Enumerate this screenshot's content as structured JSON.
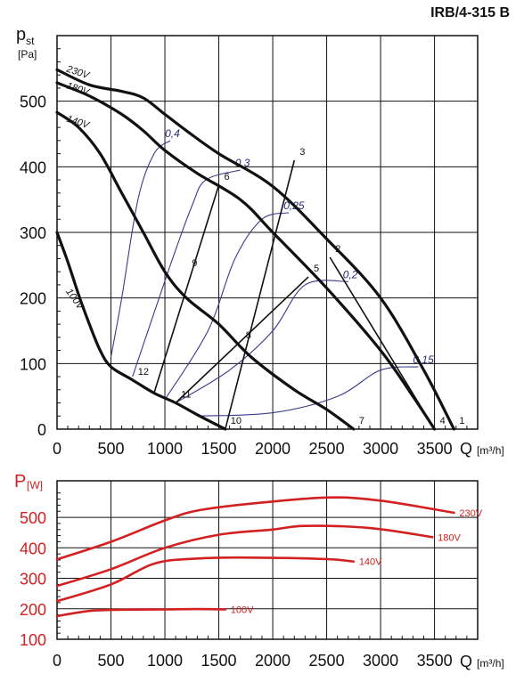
{
  "title": "IRB/4-315 B",
  "chart_data": [
    {
      "type": "line",
      "ylabel": "p",
      "ylabel_sub": "st",
      "yunit": "[Pa]",
      "xlabel": "Q",
      "xunit": "[m³/h]",
      "xlim": [
        0,
        3900
      ],
      "ylim": [
        0,
        600
      ],
      "x_ticks": [
        "0",
        "500",
        "1000",
        "1500",
        "2000",
        "2500",
        "3000",
        "3500"
      ],
      "y_ticks": [
        "0",
        "100",
        "200",
        "300",
        "400",
        "500"
      ],
      "grid": true,
      "series": [
        {
          "name": "230V",
          "points": [
            [
              0,
              548
            ],
            [
              300,
              525
            ],
            [
              600,
              515
            ],
            [
              800,
              505
            ],
            [
              1000,
              480
            ],
            [
              1200,
              455
            ],
            [
              1500,
              420
            ],
            [
              2000,
              370
            ],
            [
              2500,
              290
            ],
            [
              3000,
              200
            ],
            [
              3400,
              90
            ],
            [
              3680,
              0
            ]
          ]
        },
        {
          "name": "180V",
          "points": [
            [
              0,
              528
            ],
            [
              300,
              508
            ],
            [
              600,
              480
            ],
            [
              800,
              455
            ],
            [
              1000,
              425
            ],
            [
              1300,
              390
            ],
            [
              1700,
              350
            ],
            [
              2000,
              300
            ],
            [
              2500,
              215
            ],
            [
              3000,
              120
            ],
            [
              3300,
              50
            ],
            [
              3500,
              0
            ]
          ]
        },
        {
          "name": "140V",
          "points": [
            [
              0,
              483
            ],
            [
              200,
              460
            ],
            [
              400,
              420
            ],
            [
              600,
              360
            ],
            [
              800,
              300
            ],
            [
              1000,
              240
            ],
            [
              1200,
              200
            ],
            [
              1500,
              160
            ],
            [
              1800,
              110
            ],
            [
              2200,
              60
            ],
            [
              2500,
              30
            ],
            [
              2750,
              0
            ]
          ]
        },
        {
          "name": "100V",
          "points": [
            [
              0,
              300
            ],
            [
              100,
              255
            ],
            [
              200,
              205
            ],
            [
              300,
              160
            ],
            [
              400,
              120
            ],
            [
              500,
              95
            ],
            [
              700,
              75
            ],
            [
              900,
              55
            ],
            [
              1100,
              40
            ],
            [
              1300,
              22
            ],
            [
              1500,
              5
            ],
            [
              1560,
              0
            ]
          ]
        }
      ],
      "system_lines": [
        {
          "label": "1",
          "points": [
            [
              3680,
              0
            ]
          ]
        },
        {
          "label": "2",
          "points": [
            [
              3500,
              0
            ],
            [
              2530,
              262
            ]
          ]
        },
        {
          "label": "3",
          "points": [
            [
              1560,
              0
            ],
            [
              2200,
              410
            ]
          ]
        },
        {
          "label": "4",
          "points": [
            [
              3500,
              0
            ]
          ]
        },
        {
          "label": "5",
          "points": [
            [
              1100,
              40
            ],
            [
              2330,
              232
            ]
          ]
        },
        {
          "label": "6",
          "points": [
            [
              900,
              55
            ],
            [
              1500,
              372
            ]
          ]
        },
        {
          "label": "7",
          "points": [
            [
              2750,
              0
            ]
          ]
        },
        {
          "label": "8",
          "points": [
            [
              1700,
              130
            ]
          ]
        },
        {
          "label": "9",
          "points": [
            [
              1200,
              240
            ]
          ]
        },
        {
          "label": "10",
          "points": [
            [
              1560,
              0
            ]
          ]
        },
        {
          "label": "11",
          "points": [
            [
              1100,
              40
            ]
          ]
        },
        {
          "label": "12",
          "points": [
            [
              700,
              75
            ]
          ]
        }
      ],
      "efficiency_curves": [
        {
          "label": "0,4",
          "points": [
            [
              500,
              110
            ],
            [
              600,
              200
            ],
            [
              750,
              350
            ],
            [
              900,
              420
            ],
            [
              1050,
              440
            ]
          ]
        },
        {
          "label": "0,3",
          "points": [
            [
              700,
              80
            ],
            [
              1050,
              250
            ],
            [
              1250,
              340
            ],
            [
              1380,
              380
            ],
            [
              1700,
              395
            ]
          ]
        },
        {
          "label": "0,25",
          "points": [
            [
              1000,
              45
            ],
            [
              1400,
              150
            ],
            [
              1650,
              260
            ],
            [
              1900,
              320
            ],
            [
              2150,
              330
            ]
          ]
        },
        {
          "label": "0,2",
          "points": [
            [
              1100,
              40
            ],
            [
              1600,
              90
            ],
            [
              2000,
              150
            ],
            [
              2300,
              220
            ],
            [
              2700,
              225
            ]
          ]
        },
        {
          "label": "0,15",
          "points": [
            [
              1300,
              20
            ],
            [
              2000,
              25
            ],
            [
              2600,
              50
            ],
            [
              3000,
              90
            ],
            [
              3350,
              95
            ]
          ]
        }
      ]
    },
    {
      "type": "line",
      "ylabel": "P",
      "yunit": "[W]",
      "xlabel": "Q",
      "xunit": "[m³/h]",
      "xlim": [
        0,
        3900
      ],
      "ylim": [
        100,
        620
      ],
      "x_ticks": [
        "0",
        "500",
        "1000",
        "1500",
        "2000",
        "2500",
        "3000",
        "3500"
      ],
      "y_ticks": [
        "100",
        "200",
        "300",
        "400",
        "500"
      ],
      "grid": true,
      "series": [
        {
          "name": "230V",
          "points": [
            [
              0,
              362
            ],
            [
              500,
              420
            ],
            [
              1000,
              490
            ],
            [
              1300,
              522
            ],
            [
              1800,
              545
            ],
            [
              2500,
              565
            ],
            [
              3000,
              555
            ],
            [
              3680,
              515
            ]
          ]
        },
        {
          "name": "180V",
          "points": [
            [
              0,
              275
            ],
            [
              500,
              330
            ],
            [
              1000,
              400
            ],
            [
              1500,
              443
            ],
            [
              2000,
              460
            ],
            [
              2300,
              472
            ],
            [
              2900,
              465
            ],
            [
              3480,
              435
            ]
          ]
        },
        {
          "name": "140V",
          "points": [
            [
              0,
              225
            ],
            [
              500,
              280
            ],
            [
              900,
              348
            ],
            [
              1300,
              365
            ],
            [
              1800,
              368
            ],
            [
              2500,
              363
            ],
            [
              2750,
              355
            ]
          ]
        },
        {
          "name": "100V",
          "points": [
            [
              0,
              176
            ],
            [
              300,
              193
            ],
            [
              600,
              197
            ],
            [
              1000,
              198
            ],
            [
              1300,
              199
            ],
            [
              1560,
              198
            ]
          ]
        }
      ]
    }
  ]
}
